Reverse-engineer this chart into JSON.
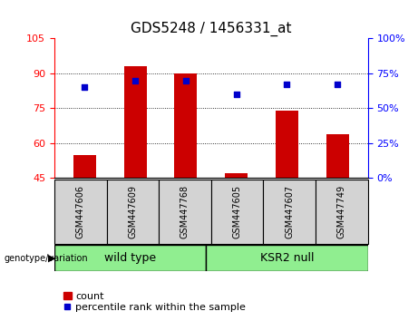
{
  "title": "GDS5248 / 1456331_at",
  "samples": [
    "GSM447606",
    "GSM447609",
    "GSM447768",
    "GSM447605",
    "GSM447607",
    "GSM447749"
  ],
  "bar_values": [
    55.0,
    93.0,
    90.0,
    47.0,
    74.0,
    64.0
  ],
  "bar_baseline": 45,
  "percentile_values": [
    65,
    70,
    70,
    60,
    67,
    67
  ],
  "left_ylim": [
    45,
    105
  ],
  "left_yticks": [
    45,
    60,
    75,
    90,
    105
  ],
  "right_ylim": [
    0,
    100
  ],
  "right_yticks": [
    0,
    25,
    50,
    75,
    100
  ],
  "bar_color": "#CC0000",
  "dot_color": "#0000CC",
  "grid_yticks": [
    60,
    75,
    90
  ],
  "genotype_label": "genotype/variation",
  "legend_count": "count",
  "legend_percentile": "percentile rank within the sample",
  "group1_name": "wild type",
  "group2_name": "KSR2 null",
  "group_color": "#90EE90",
  "label_box_color": "#D3D3D3",
  "title_fontsize": 11,
  "tick_fontsize": 8,
  "label_fontsize": 7,
  "group_fontsize": 9,
  "legend_fontsize": 8
}
